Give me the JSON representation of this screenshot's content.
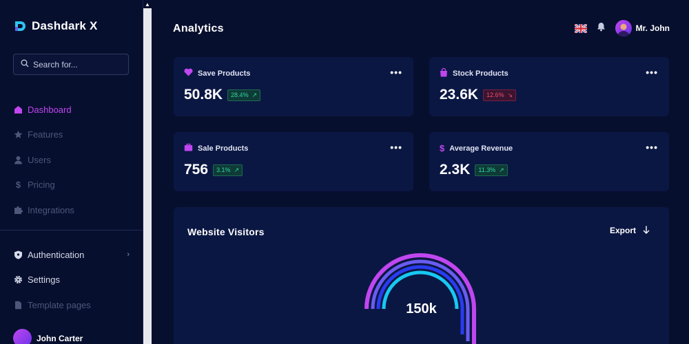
{
  "brand": {
    "name": "Dashdark X"
  },
  "search": {
    "placeholder": "Search for..."
  },
  "nav": [
    {
      "label": "Dashboard",
      "icon": "home-icon",
      "active": true
    },
    {
      "label": "Features",
      "icon": "star-icon"
    },
    {
      "label": "Users",
      "icon": "user-icon"
    },
    {
      "label": "Pricing",
      "icon": "dollar-icon"
    },
    {
      "label": "Integrations",
      "icon": "puzzle-icon"
    }
  ],
  "nav2": [
    {
      "label": "Authentication",
      "icon": "shield-icon"
    },
    {
      "label": "Settings",
      "icon": "gear-icon"
    },
    {
      "label": "Template pages",
      "icon": "file-icon"
    }
  ],
  "sidebar_user": {
    "name": "John Carter"
  },
  "header": {
    "title": "Analytics",
    "user_name": "Mr. John"
  },
  "cards": [
    {
      "title": "Save Products",
      "value": "50.8K",
      "change": "28.4%",
      "trend": "up",
      "icon": "heart-icon"
    },
    {
      "title": "Stock Products",
      "value": "23.6K",
      "change": "12.6%",
      "trend": "down",
      "icon": "bag-icon"
    },
    {
      "title": "Sale Products",
      "value": "756",
      "change": "3.1%",
      "trend": "up",
      "icon": "briefcase-icon"
    },
    {
      "title": "Average Revenue",
      "value": "2.3K",
      "change": "11.3%",
      "trend": "up",
      "icon": "dollar-icon"
    }
  ],
  "visitors": {
    "title": "Website Visitors",
    "export_label": "Export",
    "total": "150k"
  },
  "colors": {
    "accent": "#c046f0",
    "background": "#070f2e",
    "card": "#0b1743",
    "up": "#33d69f",
    "down": "#f04d6a"
  }
}
